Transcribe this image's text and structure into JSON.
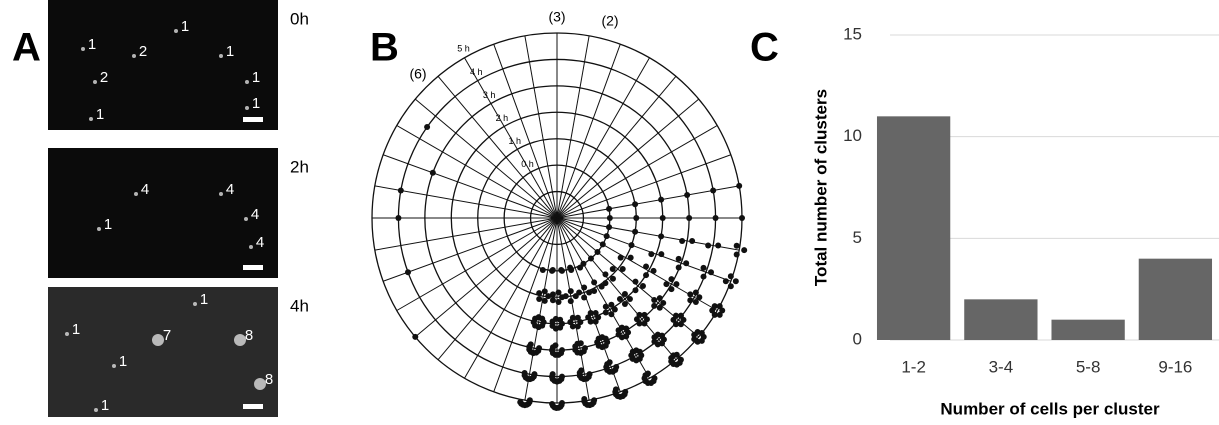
{
  "panel_labels": [
    "A",
    "B",
    "C"
  ],
  "images": [
    {
      "time": "0h",
      "labels": [
        "1",
        "1",
        "2",
        "1",
        "2",
        "1",
        "1",
        "1"
      ]
    },
    {
      "time": "2h",
      "labels": [
        "4",
        "4",
        "1",
        "4",
        "4"
      ]
    },
    {
      "time": "4h",
      "labels": [
        "1",
        "1",
        "7",
        "8",
        "1",
        "8",
        "1"
      ]
    }
  ],
  "polar": {
    "ring_labels": [
      "0 h",
      "1 h",
      "2 h",
      "3 h",
      "4 h",
      "5 h"
    ],
    "annotations": [
      "(3)",
      "(2)",
      "(6)"
    ]
  },
  "chart_data": {
    "type": "bar",
    "categories": [
      "1-2",
      "3-4",
      "5-8",
      "9-16"
    ],
    "values": [
      11,
      2,
      1,
      4
    ],
    "color": "#666666",
    "ylim": [
      0,
      15
    ],
    "yticks": [
      0,
      5,
      10,
      15
    ],
    "grid": true,
    "y_label": "Total number of clusters",
    "x_label": "Number of cells per cluster"
  }
}
